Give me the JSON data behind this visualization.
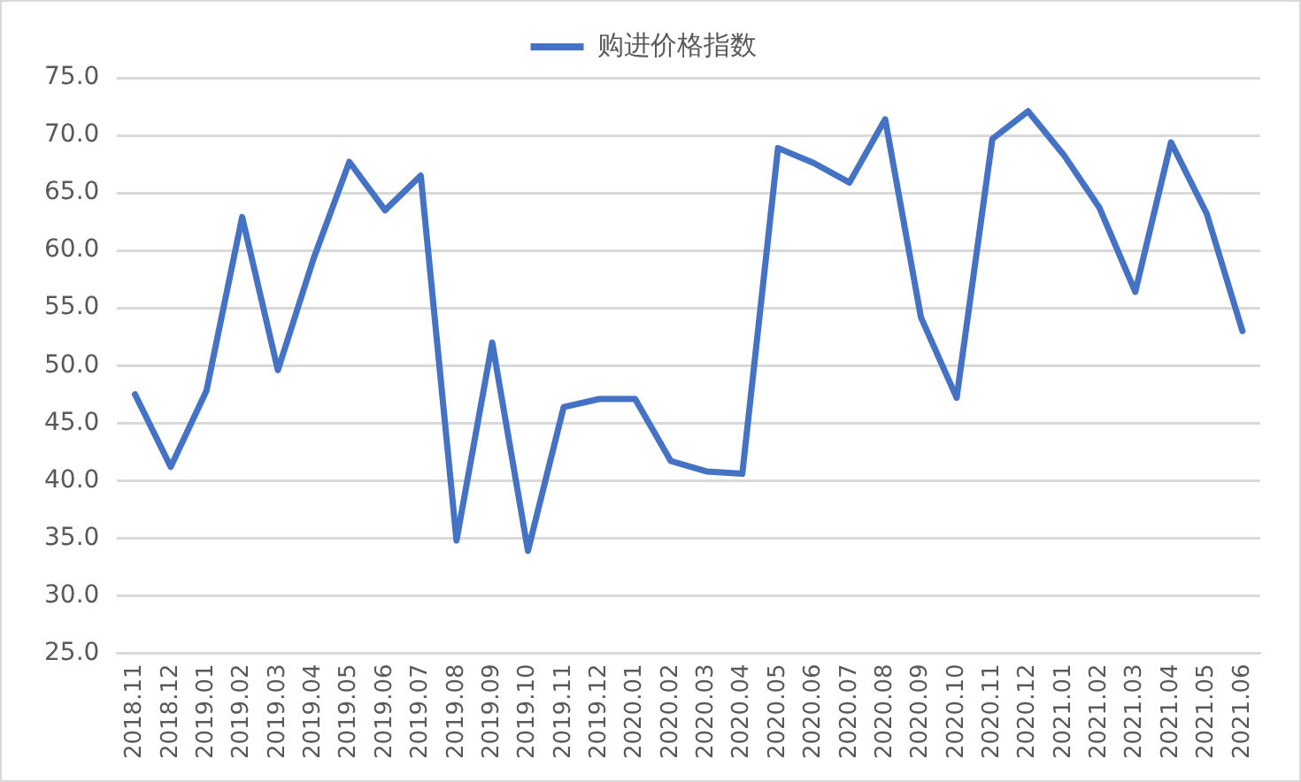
{
  "chart_data": {
    "type": "line",
    "categories": [
      "2018.11",
      "2018.12",
      "2019.01",
      "2019.02",
      "2019.03",
      "2019.04",
      "2019.05",
      "2019.06",
      "2019.07",
      "2019.08",
      "2019.09",
      "2019.10",
      "2019.11",
      "2019.12",
      "2020.01",
      "2020.02",
      "2020.03",
      "2020.04",
      "2020.05",
      "2020.06",
      "2020.07",
      "2020.08",
      "2020.09",
      "2020.10",
      "2020.11",
      "2020.12",
      "2021.01",
      "2021.02",
      "2021.03",
      "2021.04",
      "2021.05",
      "2021.06"
    ],
    "series": [
      {
        "name": "购进价格指数",
        "color": "#4472c4",
        "values": [
          47.5,
          41.2,
          47.8,
          62.9,
          49.6,
          59.3,
          67.7,
          63.5,
          66.5,
          34.8,
          52.0,
          33.9,
          46.4,
          47.1,
          47.1,
          41.7,
          40.8,
          40.6,
          68.9,
          67.6,
          65.9,
          71.4,
          54.2,
          47.2,
          69.7,
          72.1,
          68.3,
          63.7,
          56.4,
          69.4,
          63.2,
          53.0
        ]
      }
    ],
    "ylim": [
      25,
      75
    ],
    "yticks": [
      {
        "value": 25,
        "label": "25.0"
      },
      {
        "value": 30,
        "label": "30.0"
      },
      {
        "value": 35,
        "label": "35.0"
      },
      {
        "value": 40,
        "label": "40.0"
      },
      {
        "value": 45,
        "label": "45.0"
      },
      {
        "value": 50,
        "label": "50.0"
      },
      {
        "value": 55,
        "label": "55.0"
      },
      {
        "value": 60,
        "label": "60.0"
      },
      {
        "value": 65,
        "label": "65.0"
      },
      {
        "value": 70,
        "label": "70.0"
      },
      {
        "value": 75,
        "label": "75.0"
      }
    ],
    "grid": "y",
    "legend": "top",
    "marker": "none",
    "line_style": "solid"
  }
}
